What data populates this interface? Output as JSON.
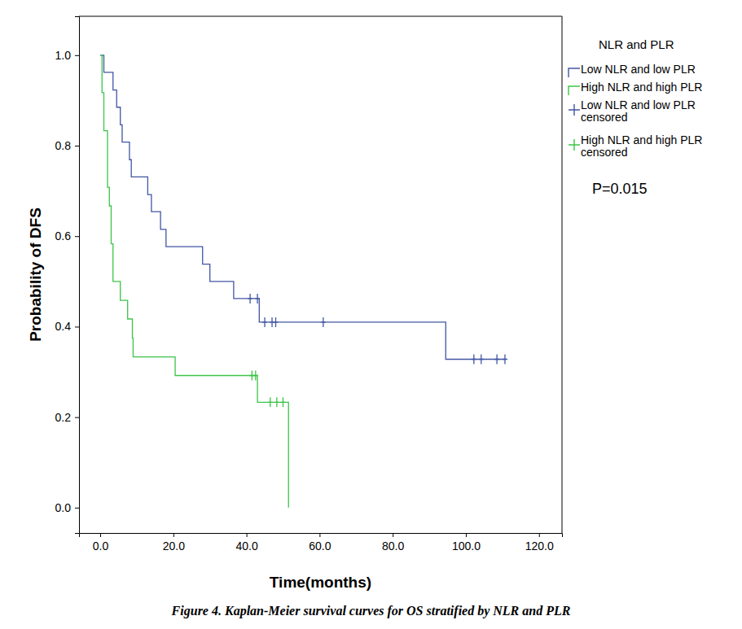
{
  "chart_data": {
    "type": "kaplan_meier",
    "title": "Figure 4. Kaplan-Meier survival curves for OS stratified by NLR and PLR",
    "x_label": "Time(months)",
    "y_label": "Probability of DFS",
    "legend_title": "NLR and PLR",
    "annotations": [
      "P=0.015"
    ],
    "legend": "right",
    "grid": false,
    "xlim": [
      -5.8,
      126.3
    ],
    "ylim": [
      -0.056,
      1.086
    ],
    "xticks": [
      {
        "value": 0,
        "label": "0.0"
      },
      {
        "value": 20,
        "label": "20.0"
      },
      {
        "value": 40,
        "label": "40.0"
      },
      {
        "value": 60,
        "label": "60.0"
      },
      {
        "value": 80,
        "label": "80.0"
      },
      {
        "value": 100,
        "label": "100.0"
      },
      {
        "value": 120,
        "label": "120.0"
      }
    ],
    "yticks": [
      {
        "value": 0,
        "label": "0.0"
      },
      {
        "value": 0.2,
        "label": "0.2"
      },
      {
        "value": 0.4,
        "label": "0.4"
      },
      {
        "value": 0.6,
        "label": "0.6"
      },
      {
        "value": 0.8,
        "label": "0.8"
      },
      {
        "value": 1,
        "label": "1.0"
      }
    ],
    "series": [
      {
        "name": "Low NLR and low PLR",
        "color": "#4156a3",
        "type": "step",
        "line_style": "step",
        "x": [
          0,
          1.0,
          3.5,
          4.5,
          5.5,
          6.0,
          8.0,
          8.5,
          13.0,
          14.0,
          16.5,
          18.0,
          28.0,
          30.0,
          36.5,
          43.5,
          94.5,
          110.7
        ],
        "values": [
          1.0,
          0.962,
          0.923,
          0.885,
          0.846,
          0.808,
          0.769,
          0.731,
          0.692,
          0.654,
          0.615,
          0.577,
          0.538,
          0.5,
          0.462,
          0.41,
          0.328,
          0.328
        ]
      },
      {
        "name": "High NLR and high PLR",
        "color": "#3cc447",
        "type": "step",
        "line_style": "step",
        "x": [
          0,
          0.5,
          1.0,
          2.0,
          2.5,
          3.0,
          3.5,
          5.5,
          7.5,
          8.8,
          9.0,
          20.5,
          43.0,
          51.5
        ],
        "values": [
          1.0,
          0.917,
          0.833,
          0.708,
          0.667,
          0.583,
          0.5,
          0.458,
          0.417,
          0.375,
          0.333,
          0.292,
          0.233,
          0.0
        ]
      },
      {
        "name": "Low NLR and low PLR censored",
        "color": "#4156a3",
        "type": "scatter",
        "marker": "plus",
        "x": [
          41.0,
          43.0,
          45.0,
          47.0,
          48.0,
          61.0,
          102.2,
          104.2,
          108.5,
          110.7
        ],
        "values": [
          0.462,
          0.462,
          0.41,
          0.41,
          0.41,
          0.41,
          0.328,
          0.328,
          0.328,
          0.328
        ]
      },
      {
        "name": "High NLR and high PLR censored",
        "color": "#3cc447",
        "type": "scatter",
        "marker": "plus",
        "x": [
          41.5,
          42.5,
          46.5,
          48.3,
          50.0
        ],
        "values": [
          0.292,
          0.292,
          0.233,
          0.233,
          0.233
        ]
      }
    ]
  }
}
